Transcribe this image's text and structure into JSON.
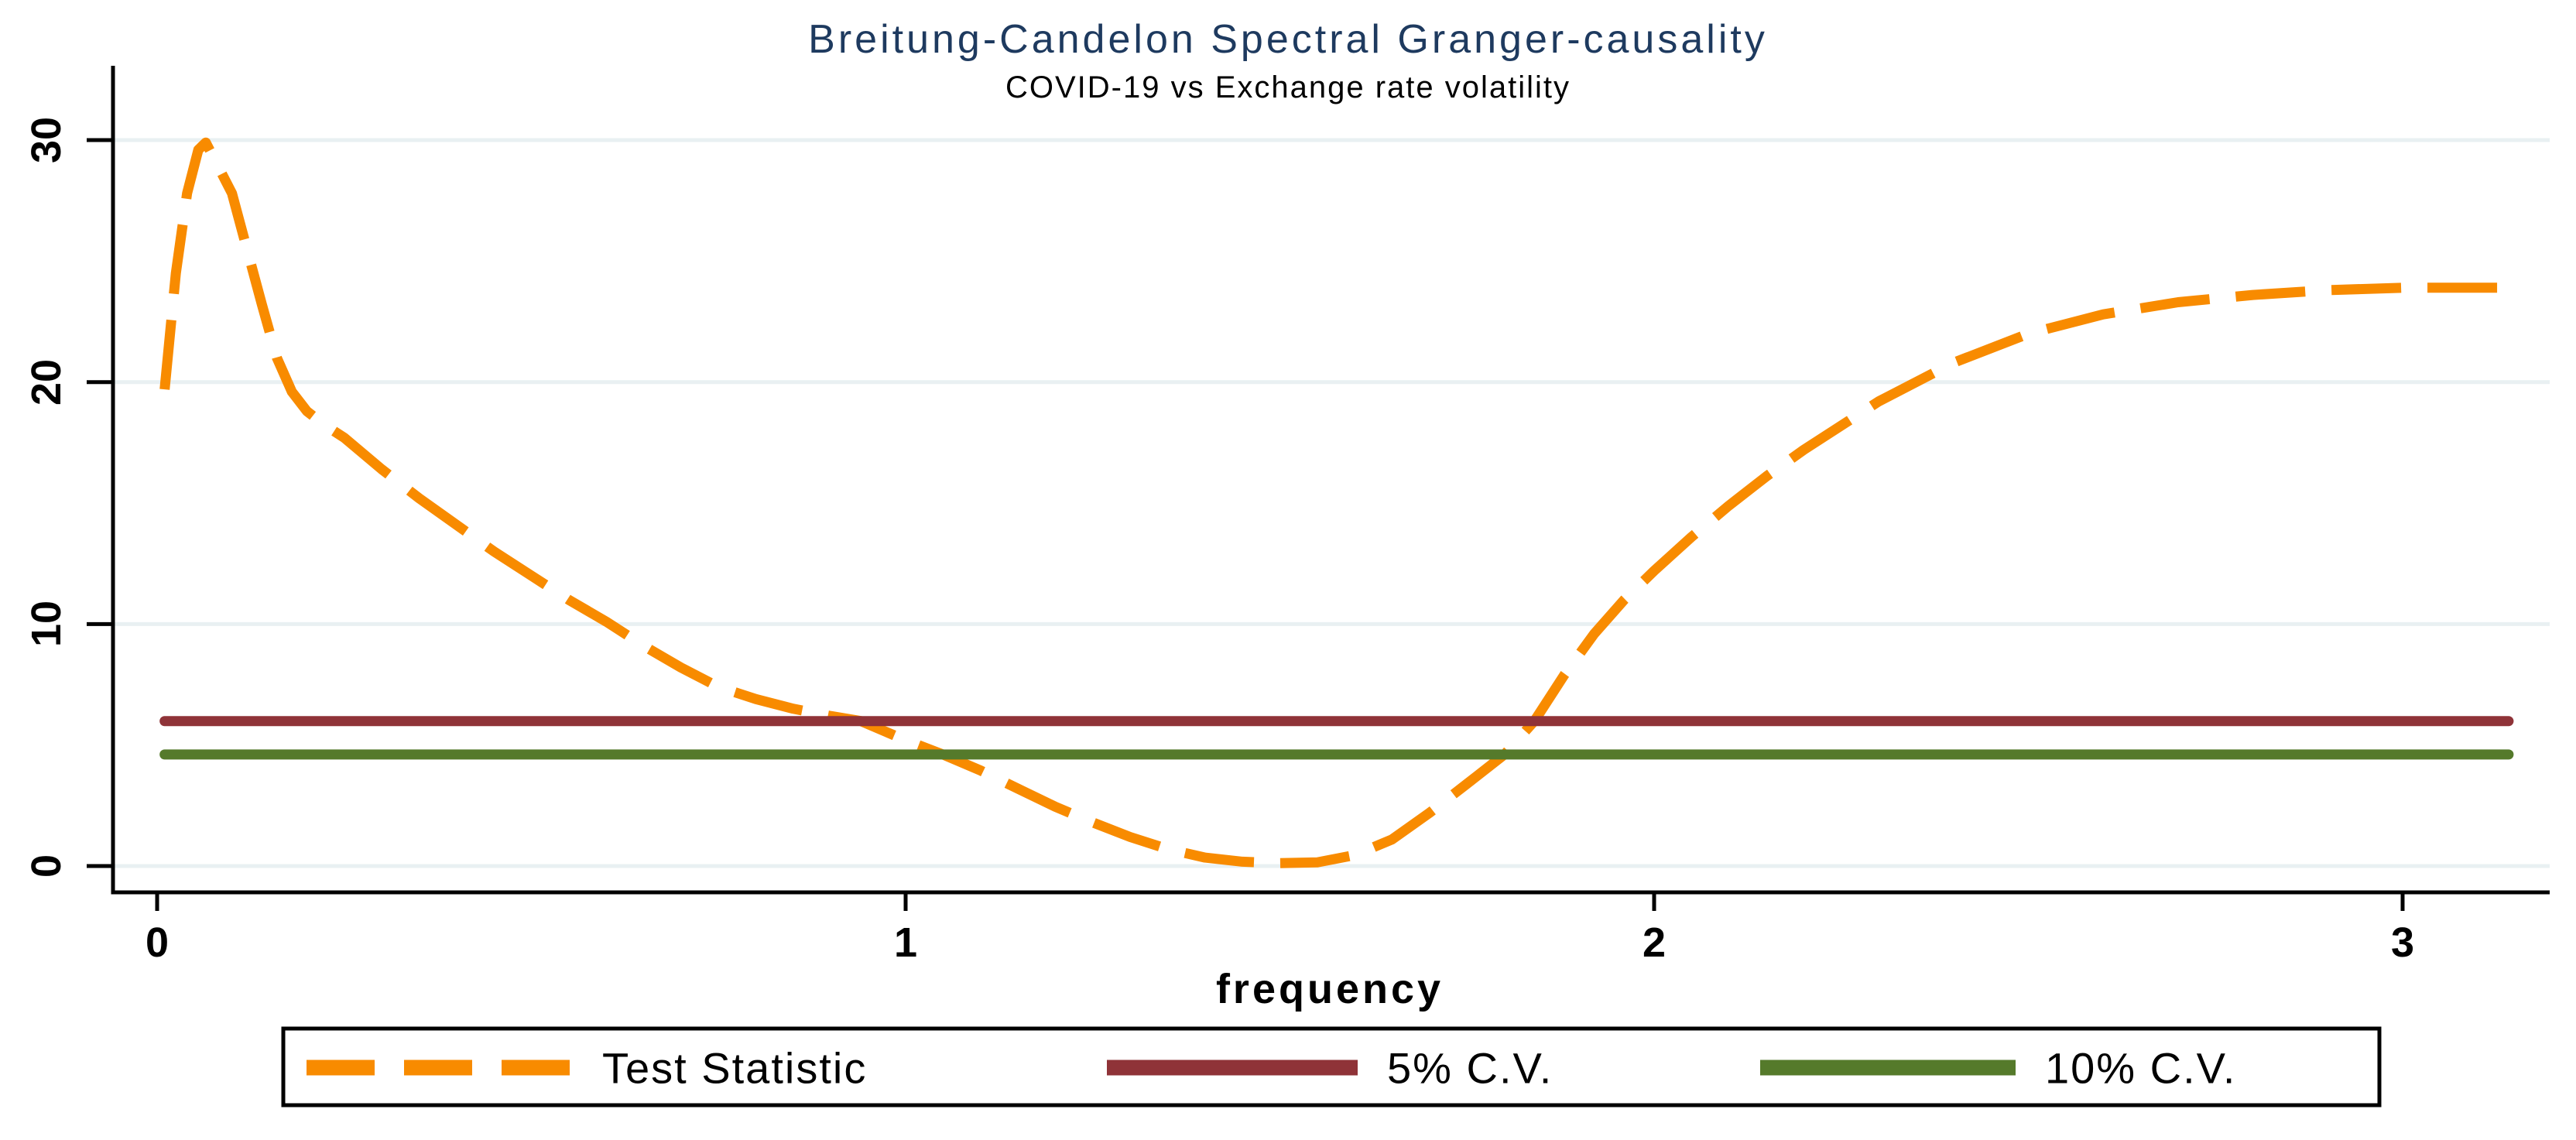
{
  "title": "Breitung-Candelon Spectral Granger-causality",
  "subtitle": "COVID-19 vs Exchange rate volatility",
  "colors": {
    "title_text": "#1e3a5f",
    "subtitle_text": "#000000",
    "axis": "#000000",
    "grid": "#e9f0f2",
    "test_statistic": "#f88b00",
    "cv5": "#8f3338",
    "cv10": "#557a2b",
    "legend_border": "#000000",
    "background": "#ffffff"
  },
  "chart_data": {
    "type": "line",
    "title": "Breitung-Candelon Spectral Granger-causality",
    "subtitle": "COVID-19 vs Exchange rate volatility",
    "xlabel": "frequency",
    "ylabel": "",
    "xlim": [
      0,
      3.19
    ],
    "ylim": [
      0,
      30
    ],
    "x_ticks": [
      0,
      1,
      2,
      3
    ],
    "y_ticks": [
      0,
      10,
      20,
      30
    ],
    "grid": "horizontal-light",
    "legend_position": "bottom-boxed",
    "series": [
      {
        "name": "Test Statistic",
        "color": "#f88b00",
        "style": "dashed",
        "x": [
          0.01,
          0.025,
          0.04,
          0.055,
          0.065,
          0.08,
          0.1,
          0.12,
          0.14,
          0.16,
          0.18,
          0.2,
          0.225,
          0.25,
          0.3,
          0.35,
          0.4,
          0.45,
          0.5,
          0.55,
          0.6,
          0.65,
          0.7,
          0.75,
          0.8,
          0.85,
          0.9,
          0.94,
          1.0,
          1.05,
          1.1,
          1.15,
          1.2,
          1.25,
          1.3,
          1.35,
          1.4,
          1.45,
          1.5,
          1.55,
          1.6,
          1.65,
          1.7,
          1.75,
          1.8,
          1.84,
          1.88,
          1.92,
          1.96,
          2.0,
          2.05,
          2.1,
          2.15,
          2.2,
          2.3,
          2.4,
          2.5,
          2.6,
          2.7,
          2.8,
          2.9,
          3.0,
          3.07,
          3.1416
        ],
        "y": [
          19.7,
          24.5,
          27.8,
          29.6,
          29.9,
          29.0,
          27.8,
          25.5,
          23.2,
          21.0,
          19.6,
          18.8,
          18.2,
          17.7,
          16.4,
          15.2,
          14.1,
          13.0,
          12.0,
          11.0,
          10.1,
          9.1,
          8.2,
          7.4,
          6.9,
          6.5,
          6.2,
          5.99,
          5.2,
          4.61,
          3.95,
          3.2,
          2.45,
          1.8,
          1.2,
          0.7,
          0.35,
          0.18,
          0.12,
          0.15,
          0.45,
          1.1,
          2.2,
          3.4,
          4.61,
          5.99,
          7.9,
          9.6,
          11.0,
          12.2,
          13.6,
          14.9,
          16.1,
          17.2,
          19.2,
          20.8,
          22.0,
          22.8,
          23.3,
          23.6,
          23.8,
          23.9,
          23.9,
          23.9
        ]
      },
      {
        "name": "5% C.V.",
        "color": "#8f3338",
        "style": "solid",
        "x": [
          0.01,
          3.1416
        ],
        "y": [
          5.99,
          5.99
        ]
      },
      {
        "name": "10% C.V.",
        "color": "#557a2b",
        "style": "solid",
        "x": [
          0.01,
          3.1416
        ],
        "y": [
          4.61,
          4.61
        ]
      }
    ]
  }
}
